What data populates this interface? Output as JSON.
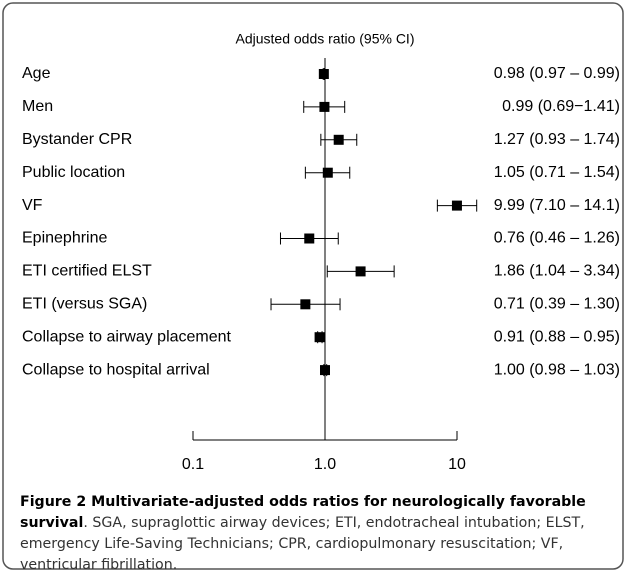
{
  "chart_data": {
    "type": "forest",
    "title": "Adjusted odds ratio (95% CI)",
    "categories": [
      "Age",
      "Men",
      "Bystander CPR",
      "Public location",
      "VF",
      "Epinephrine",
      "ETI certified ELST",
      "ETI (versus SGA)",
      "Collapse to airway placement",
      "Collapse to hospital arrival"
    ],
    "values": [
      0.98,
      0.99,
      1.27,
      1.05,
      9.99,
      0.76,
      1.86,
      0.71,
      0.91,
      1.0
    ],
    "lower": [
      0.97,
      0.69,
      0.93,
      0.71,
      7.1,
      0.46,
      1.04,
      0.39,
      0.88,
      0.98
    ],
    "upper": [
      0.99,
      1.41,
      1.74,
      1.54,
      14.1,
      1.26,
      3.34,
      1.3,
      0.95,
      1.03
    ],
    "value_labels": [
      "0.98 (0.97 – 0.99)",
      "0.99 (0.69−1.41)",
      "1.27 (0.93 – 1.74)",
      "1.05 (0.71 – 1.54)",
      "9.99 (7.10 – 14.1)",
      "0.76 (0.46 – 1.26)",
      "1.86 (1.04 – 3.34)",
      "0.71 (0.39 – 1.30)",
      "0.91 (0.88 – 0.95)",
      "1.00 (0.98 – 1.03)"
    ],
    "color": "#000000",
    "log_x": true,
    "xlim": [
      0.1,
      10
    ],
    "xticks": [
      0.1,
      {
        "value": 1,
        "label": "1.0"
      },
      10
    ],
    "reference": 1,
    "caption": {
      "label": "Figure 2 Multivariate-adjusted odds ratios for neurologically favorable survival",
      "text": ". SGA, supraglottic airway devices; ETI, endotracheal intubation; ELST, emergency Life-Saving Technicians; CPR, cardiopulmonary resuscitation; VF, ventricular fibrillation."
    }
  }
}
